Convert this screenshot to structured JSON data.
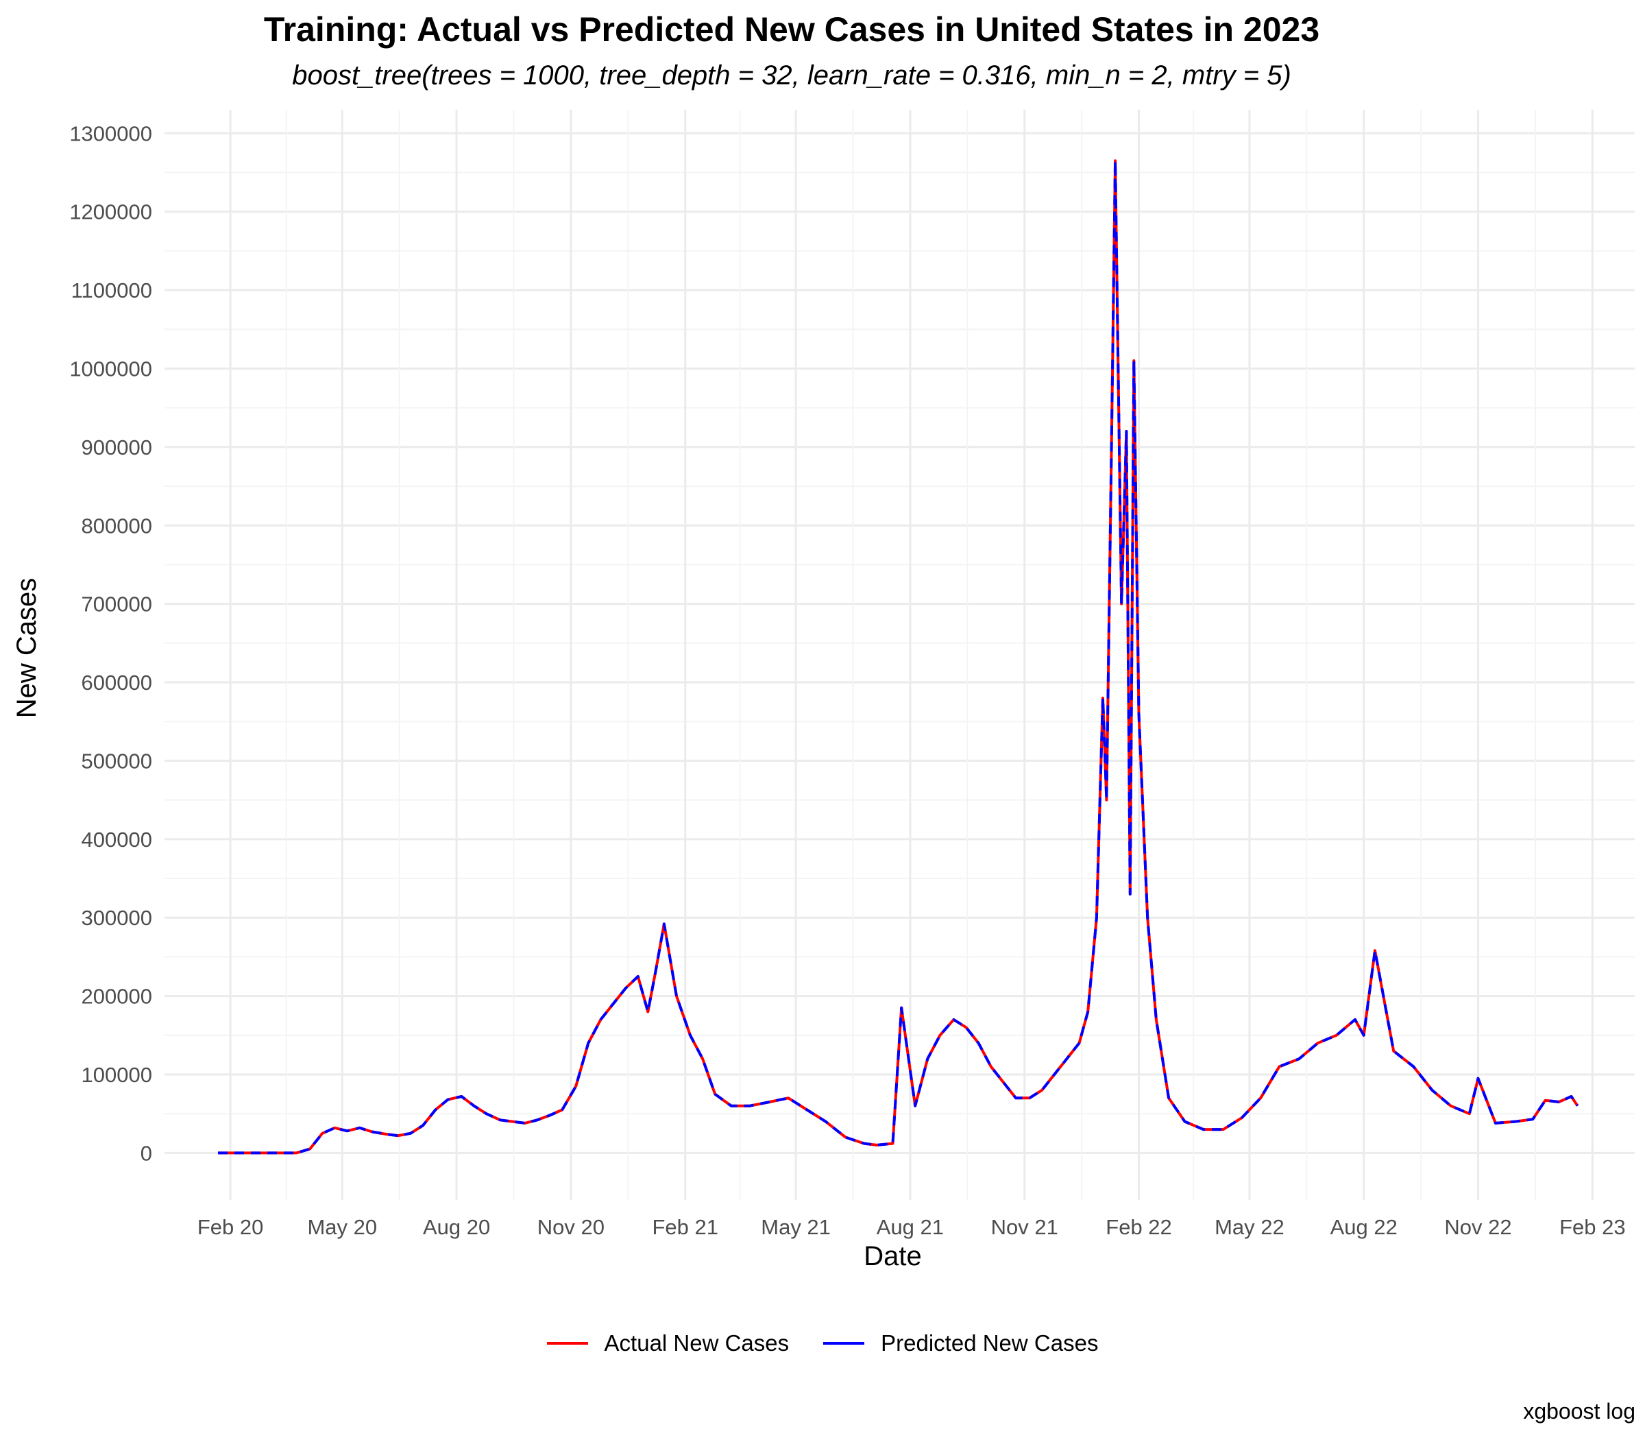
{
  "chart_data": {
    "type": "line",
    "title": "Training: Actual vs Predicted New Cases in United States in 2023",
    "subtitle": "boost_tree(trees = 1000, tree_depth = 32, learn_rate = 0.316, min_n = 2, mtry = 5)",
    "xlabel": "Date",
    "ylabel": "New Cases",
    "caption": "xgboost log",
    "x_ticks": [
      "Feb 20",
      "May 20",
      "Aug 20",
      "Nov 20",
      "Feb 21",
      "May 21",
      "Aug 21",
      "Nov 21",
      "Feb 22",
      "May 22",
      "Aug 22",
      "Nov 22",
      "Feb 23"
    ],
    "x_tick_dates": [
      "2020-02-01",
      "2020-05-01",
      "2020-08-01",
      "2020-11-01",
      "2021-02-01",
      "2021-05-01",
      "2021-08-01",
      "2021-11-01",
      "2022-02-01",
      "2022-05-01",
      "2022-08-01",
      "2022-11-01",
      "2023-02-01"
    ],
    "xlim": [
      "2019-12-10",
      "2023-03-07"
    ],
    "y_ticks": [
      0,
      100000,
      200000,
      300000,
      400000,
      500000,
      600000,
      700000,
      800000,
      900000,
      1000000,
      1100000,
      1200000,
      1300000
    ],
    "ylim": [
      -60000,
      1330000
    ],
    "grid": true,
    "legend_position": "bottom",
    "series": [
      {
        "name": "Actual New Cases",
        "color": "#ff0000",
        "style": "solid"
      },
      {
        "name": "Predicted New Cases",
        "color": "#0000ff",
        "style": "dashed"
      }
    ],
    "x": [
      "2020-01-22",
      "2020-02-15",
      "2020-03-10",
      "2020-03-25",
      "2020-04-05",
      "2020-04-15",
      "2020-04-25",
      "2020-05-05",
      "2020-05-15",
      "2020-05-25",
      "2020-06-05",
      "2020-06-15",
      "2020-06-25",
      "2020-07-05",
      "2020-07-15",
      "2020-07-25",
      "2020-08-05",
      "2020-08-15",
      "2020-08-25",
      "2020-09-05",
      "2020-09-15",
      "2020-09-25",
      "2020-10-05",
      "2020-10-15",
      "2020-10-25",
      "2020-11-05",
      "2020-11-15",
      "2020-11-25",
      "2020-12-05",
      "2020-12-15",
      "2020-12-25",
      "2021-01-02",
      "2021-01-08",
      "2021-01-15",
      "2021-01-25",
      "2021-02-05",
      "2021-02-15",
      "2021-02-25",
      "2021-03-10",
      "2021-03-25",
      "2021-04-10",
      "2021-04-25",
      "2021-05-10",
      "2021-05-25",
      "2021-06-10",
      "2021-06-25",
      "2021-07-05",
      "2021-07-18",
      "2021-07-25",
      "2021-08-05",
      "2021-08-15",
      "2021-08-25",
      "2021-09-05",
      "2021-09-15",
      "2021-09-25",
      "2021-10-05",
      "2021-10-15",
      "2021-10-25",
      "2021-11-05",
      "2021-11-15",
      "2021-11-25",
      "2021-12-05",
      "2021-12-15",
      "2021-12-22",
      "2021-12-29",
      "2022-01-03",
      "2022-01-06",
      "2022-01-10",
      "2022-01-13",
      "2022-01-18",
      "2022-01-22",
      "2022-01-25",
      "2022-01-28",
      "2022-02-01",
      "2022-02-08",
      "2022-02-15",
      "2022-02-25",
      "2022-03-10",
      "2022-03-25",
      "2022-04-10",
      "2022-04-25",
      "2022-05-10",
      "2022-05-25",
      "2022-06-10",
      "2022-06-25",
      "2022-07-10",
      "2022-07-25",
      "2022-08-01",
      "2022-08-10",
      "2022-08-25",
      "2022-09-10",
      "2022-09-25",
      "2022-10-10",
      "2022-10-25",
      "2022-11-01",
      "2022-11-15",
      "2022-12-01",
      "2022-12-15",
      "2022-12-25",
      "2023-01-05",
      "2023-01-15",
      "2023-01-20"
    ],
    "actual": [
      0,
      0,
      0,
      0,
      5000,
      25000,
      32000,
      28000,
      32000,
      27000,
      24000,
      22000,
      25000,
      35000,
      55000,
      68000,
      72000,
      60000,
      50000,
      42000,
      40000,
      38000,
      42000,
      48000,
      55000,
      85000,
      140000,
      170000,
      190000,
      210000,
      225000,
      180000,
      230000,
      292000,
      200000,
      150000,
      120000,
      75000,
      60000,
      60000,
      65000,
      70000,
      55000,
      40000,
      20000,
      12000,
      10000,
      12000,
      185000,
      60000,
      120000,
      150000,
      170000,
      160000,
      140000,
      110000,
      90000,
      70000,
      70000,
      80000,
      100000,
      120000,
      140000,
      180000,
      300000,
      580000,
      450000,
      900000,
      1265000,
      700000,
      920000,
      330000,
      1010000,
      560000,
      300000,
      170000,
      70000,
      40000,
      30000,
      30000,
      45000,
      70000,
      110000,
      120000,
      140000,
      150000,
      170000,
      150000,
      258000,
      130000,
      110000,
      80000,
      60000,
      50000,
      95000,
      38000,
      40000,
      43000,
      67000,
      65000,
      72000,
      60000
    ],
    "predicted": [
      0,
      0,
      0,
      0,
      5000,
      25000,
      32000,
      28000,
      32000,
      27000,
      24000,
      22000,
      25000,
      35000,
      55000,
      68000,
      72000,
      60000,
      50000,
      42000,
      40000,
      38000,
      42000,
      48000,
      55000,
      85000,
      140000,
      170000,
      190000,
      210000,
      225000,
      180000,
      230000,
      292000,
      200000,
      150000,
      120000,
      75000,
      60000,
      60000,
      65000,
      70000,
      55000,
      40000,
      20000,
      12000,
      10000,
      12000,
      185000,
      60000,
      120000,
      150000,
      170000,
      160000,
      140000,
      110000,
      90000,
      70000,
      70000,
      80000,
      100000,
      120000,
      140000,
      180000,
      300000,
      580000,
      450000,
      900000,
      1265000,
      700000,
      920000,
      330000,
      1010000,
      560000,
      300000,
      170000,
      70000,
      40000,
      30000,
      30000,
      45000,
      70000,
      110000,
      120000,
      140000,
      150000,
      170000,
      150000,
      258000,
      130000,
      110000,
      80000,
      60000,
      50000,
      95000,
      38000,
      40000,
      43000,
      67000,
      65000,
      72000,
      60000
    ]
  }
}
